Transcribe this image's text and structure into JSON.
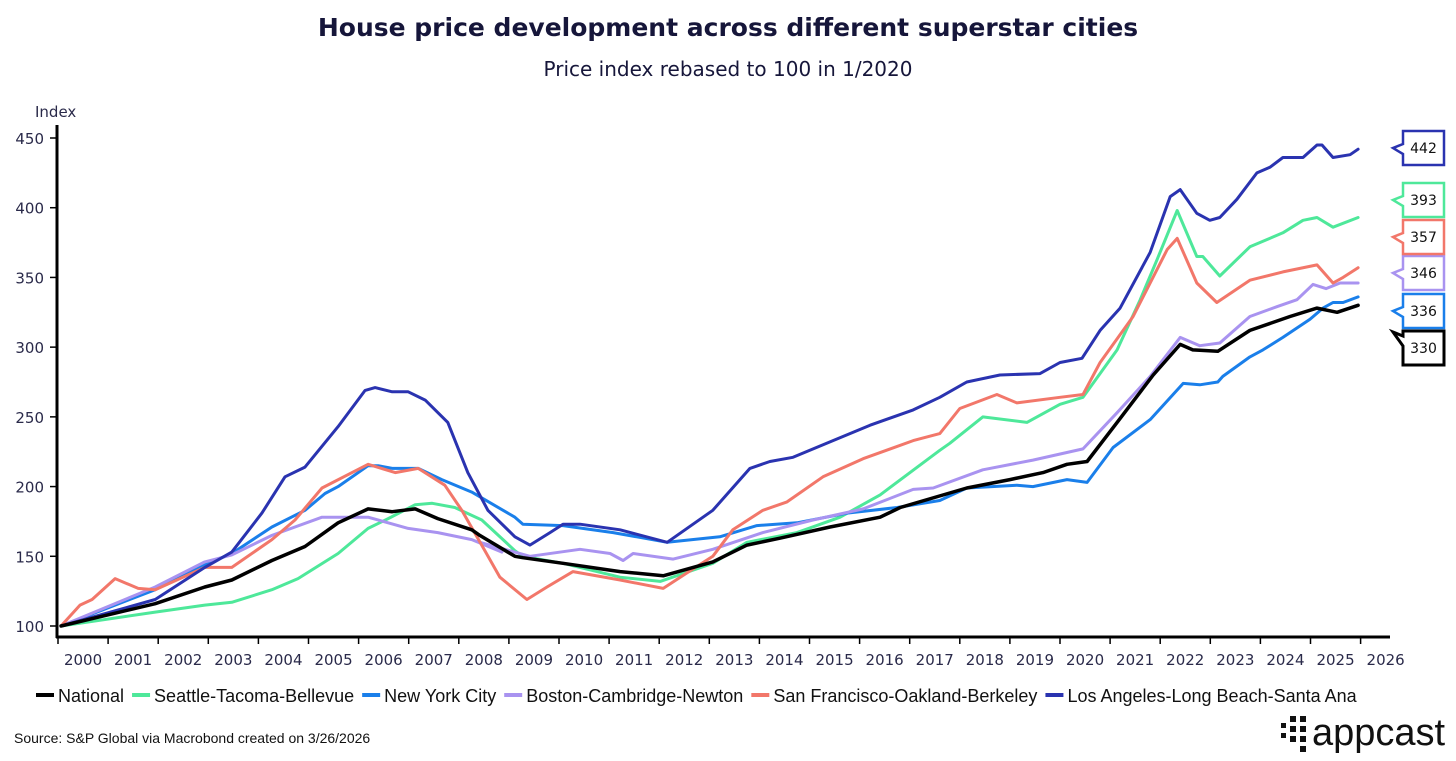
{
  "chart_data": {
    "type": "line",
    "title": "House price development across different superstar cities",
    "subtitle": "Price index rebased to 100 in 1/2020",
    "ylabel": "Index",
    "xlabel": "",
    "ylim": [
      100,
      450
    ],
    "xlim": [
      2000,
      2026
    ],
    "yticks": [
      100,
      150,
      200,
      250,
      300,
      350,
      400,
      450
    ],
    "xtick_labels": [
      "2000",
      "2001",
      "2002",
      "2003",
      "2004",
      "2005",
      "2006",
      "2007",
      "2008",
      "2009",
      "2010",
      "2011",
      "2012",
      "2013",
      "2014",
      "2015",
      "2016",
      "2017",
      "2018",
      "2019",
      "2020",
      "2021",
      "2022",
      "2023",
      "2024",
      "2025",
      "2026"
    ],
    "grid": false,
    "legend_placement": "bottom",
    "source": "Source: S&P Global via Macrobond created on 3/26/2026",
    "series": [
      {
        "name": "National",
        "color": "#000000",
        "end_label": "330",
        "points": [
          [
            2000.06,
            100
          ],
          [
            2001.94,
            116
          ],
          [
            2002.93,
            128
          ],
          [
            2003.47,
            133
          ],
          [
            2004.27,
            147
          ],
          [
            2004.93,
            157
          ],
          [
            2005.59,
            174
          ],
          [
            2006.19,
            184
          ],
          [
            2006.67,
            182
          ],
          [
            2007.13,
            184
          ],
          [
            2007.58,
            177
          ],
          [
            2008.26,
            169
          ],
          [
            2008.42,
            165
          ],
          [
            2009.12,
            150
          ],
          [
            2009.28,
            149
          ],
          [
            2010.08,
            145
          ],
          [
            2011.22,
            139
          ],
          [
            2012.08,
            136
          ],
          [
            2013.07,
            146
          ],
          [
            2013.75,
            158
          ],
          [
            2014.41,
            163
          ],
          [
            2015.41,
            171
          ],
          [
            2016.41,
            178
          ],
          [
            2016.81,
            185
          ],
          [
            2018.14,
            199
          ],
          [
            2019.0,
            205
          ],
          [
            2019.66,
            210
          ],
          [
            2020.14,
            216
          ],
          [
            2020.54,
            218
          ],
          [
            2021.14,
            246
          ],
          [
            2021.86,
            280
          ],
          [
            2022.4,
            302
          ],
          [
            2022.65,
            298
          ],
          [
            2023.15,
            297
          ],
          [
            2023.79,
            312
          ],
          [
            2024.59,
            322
          ],
          [
            2025.13,
            328
          ],
          [
            2025.53,
            325
          ],
          [
            2025.95,
            330
          ]
        ]
      },
      {
        "name": "Seattle-Tacoma-Bellevue",
        "color": "#4ee89a",
        "end_label": "393",
        "points": [
          [
            2000.06,
            100
          ],
          [
            2001.94,
            110
          ],
          [
            2002.93,
            115
          ],
          [
            2003.47,
            117
          ],
          [
            2004.27,
            126
          ],
          [
            2004.79,
            134
          ],
          [
            2005.59,
            152
          ],
          [
            2006.19,
            170
          ],
          [
            2006.59,
            177
          ],
          [
            2007.13,
            187
          ],
          [
            2007.47,
            188
          ],
          [
            2007.92,
            185
          ],
          [
            2008.46,
            176
          ],
          [
            2009.12,
            154
          ],
          [
            2009.28,
            150
          ],
          [
            2010.08,
            145
          ],
          [
            2011.22,
            135
          ],
          [
            2012.02,
            132
          ],
          [
            2013.07,
            145
          ],
          [
            2013.75,
            160
          ],
          [
            2014.75,
            167
          ],
          [
            2015.61,
            178
          ],
          [
            2016.41,
            194
          ],
          [
            2017.6,
            226
          ],
          [
            2017.8,
            231
          ],
          [
            2018.46,
            250
          ],
          [
            2019.34,
            246
          ],
          [
            2020.0,
            259
          ],
          [
            2020.46,
            264
          ],
          [
            2021.14,
            298
          ],
          [
            2021.6,
            334
          ],
          [
            2021.94,
            363
          ],
          [
            2022.34,
            398
          ],
          [
            2022.73,
            365
          ],
          [
            2022.85,
            365
          ],
          [
            2023.19,
            351
          ],
          [
            2023.79,
            372
          ],
          [
            2024.45,
            382
          ],
          [
            2024.85,
            391
          ],
          [
            2025.13,
            393
          ],
          [
            2025.45,
            386
          ],
          [
            2025.95,
            393
          ]
        ]
      },
      {
        "name": "New York City",
        "color": "#1a7fea",
        "end_label": "336",
        "points": [
          [
            2000.06,
            100
          ],
          [
            2001.94,
            126
          ],
          [
            2002.93,
            144
          ],
          [
            2003.47,
            152
          ],
          [
            2004.27,
            171
          ],
          [
            2004.93,
            183
          ],
          [
            2005.33,
            195
          ],
          [
            2005.59,
            200
          ],
          [
            2006.19,
            215
          ],
          [
            2006.39,
            215
          ],
          [
            2006.67,
            213
          ],
          [
            2007.19,
            213
          ],
          [
            2007.66,
            205
          ],
          [
            2008.26,
            196
          ],
          [
            2009.12,
            178
          ],
          [
            2009.28,
            173
          ],
          [
            2010.08,
            172
          ],
          [
            2011.08,
            167
          ],
          [
            2012.16,
            160
          ],
          [
            2013.21,
            164
          ],
          [
            2013.95,
            172
          ],
          [
            2014.75,
            174
          ],
          [
            2015.75,
            181
          ],
          [
            2016.75,
            185
          ],
          [
            2017.6,
            190
          ],
          [
            2018.14,
            199
          ],
          [
            2019.14,
            201
          ],
          [
            2019.46,
            200
          ],
          [
            2020.14,
            205
          ],
          [
            2020.54,
            203
          ],
          [
            2021.06,
            228
          ],
          [
            2021.8,
            248
          ],
          [
            2022.46,
            274
          ],
          [
            2022.79,
            273
          ],
          [
            2023.15,
            275
          ],
          [
            2023.25,
            279
          ],
          [
            2023.79,
            293
          ],
          [
            2024.05,
            298
          ],
          [
            2024.45,
            307
          ],
          [
            2024.99,
            320
          ],
          [
            2025.25,
            328
          ],
          [
            2025.45,
            332
          ],
          [
            2025.65,
            332
          ],
          [
            2025.95,
            336
          ]
        ]
      },
      {
        "name": "Boston-Cambridge-Newton",
        "color": "#a993f0",
        "end_label": "346",
        "points": [
          [
            2000.06,
            100
          ],
          [
            2001.94,
            128
          ],
          [
            2002.93,
            146
          ],
          [
            2003.47,
            151
          ],
          [
            2004.27,
            165
          ],
          [
            2005.27,
            178
          ],
          [
            2005.79,
            178
          ],
          [
            2006.19,
            178
          ],
          [
            2006.99,
            170
          ],
          [
            2007.58,
            167
          ],
          [
            2008.26,
            162
          ],
          [
            2008.86,
            153
          ],
          [
            2008.42,
            160
          ],
          [
            2009.42,
            150
          ],
          [
            2010.42,
            155
          ],
          [
            2011.02,
            152
          ],
          [
            2011.28,
            147
          ],
          [
            2011.48,
            152
          ],
          [
            2012.28,
            148
          ],
          [
            2013.07,
            155
          ],
          [
            2014.07,
            167
          ],
          [
            2015.07,
            176
          ],
          [
            2016.07,
            184
          ],
          [
            2017.07,
            198
          ],
          [
            2017.47,
            199
          ],
          [
            2018.46,
            212
          ],
          [
            2019.46,
            219
          ],
          [
            2020.46,
            227
          ],
          [
            2021.14,
            253
          ],
          [
            2021.8,
            279
          ],
          [
            2022.4,
            307
          ],
          [
            2022.79,
            301
          ],
          [
            2023.19,
            303
          ],
          [
            2023.79,
            322
          ],
          [
            2024.33,
            329
          ],
          [
            2024.73,
            334
          ],
          [
            2025.05,
            345
          ],
          [
            2025.31,
            342
          ],
          [
            2025.59,
            346
          ],
          [
            2025.95,
            346
          ]
        ]
      },
      {
        "name": "San Francisco-Oakland-Berkeley",
        "color": "#f2776a",
        "end_label": "357",
        "points": [
          [
            2000.06,
            100
          ],
          [
            2000.44,
            115
          ],
          [
            2000.68,
            119
          ],
          [
            2001.14,
            134
          ],
          [
            2001.6,
            127
          ],
          [
            2001.94,
            126
          ],
          [
            2002.93,
            142
          ],
          [
            2003.47,
            142
          ],
          [
            2004.27,
            162
          ],
          [
            2004.73,
            176
          ],
          [
            2005.27,
            199
          ],
          [
            2006.19,
            216
          ],
          [
            2006.73,
            210
          ],
          [
            2007.19,
            213
          ],
          [
            2007.72,
            201
          ],
          [
            2008.06,
            183
          ],
          [
            2008.52,
            154
          ],
          [
            2008.82,
            135
          ],
          [
            2009.36,
            119
          ],
          [
            2009.76,
            128
          ],
          [
            2010.28,
            139
          ],
          [
            2011.22,
            133
          ],
          [
            2012.08,
            127
          ],
          [
            2012.55,
            138
          ],
          [
            2013.07,
            150
          ],
          [
            2013.47,
            169
          ],
          [
            2014.07,
            183
          ],
          [
            2014.55,
            189
          ],
          [
            2015.27,
            207
          ],
          [
            2016.07,
            220
          ],
          [
            2017.07,
            233
          ],
          [
            2017.6,
            238
          ],
          [
            2018.0,
            256
          ],
          [
            2018.74,
            266
          ],
          [
            2019.14,
            260
          ],
          [
            2020.0,
            264
          ],
          [
            2020.46,
            266
          ],
          [
            2020.8,
            289
          ],
          [
            2021.46,
            322
          ],
          [
            2022.14,
            370
          ],
          [
            2022.34,
            378
          ],
          [
            2022.73,
            346
          ],
          [
            2023.13,
            332
          ],
          [
            2023.79,
            348
          ],
          [
            2024.45,
            354
          ],
          [
            2025.13,
            359
          ],
          [
            2025.45,
            346
          ],
          [
            2025.65,
            350
          ],
          [
            2025.95,
            357
          ]
        ]
      },
      {
        "name": "Los Angeles-Long Beach-Santa Ana",
        "color": "#2a33b0",
        "end_label": "442",
        "points": [
          [
            2000.06,
            100
          ],
          [
            2001.94,
            119
          ],
          [
            2002.93,
            142
          ],
          [
            2003.47,
            153
          ],
          [
            2004.07,
            181
          ],
          [
            2004.53,
            207
          ],
          [
            2004.93,
            214
          ],
          [
            2005.59,
            243
          ],
          [
            2006.13,
            269
          ],
          [
            2006.33,
            271
          ],
          [
            2006.67,
            268
          ],
          [
            2006.99,
            268
          ],
          [
            2007.33,
            262
          ],
          [
            2007.78,
            246
          ],
          [
            2008.18,
            210
          ],
          [
            2008.58,
            183
          ],
          [
            2009.12,
            164
          ],
          [
            2009.42,
            158
          ],
          [
            2009.82,
            167
          ],
          [
            2010.08,
            173
          ],
          [
            2010.42,
            173
          ],
          [
            2011.22,
            169
          ],
          [
            2012.16,
            160
          ],
          [
            2013.07,
            183
          ],
          [
            2013.81,
            213
          ],
          [
            2014.21,
            218
          ],
          [
            2014.67,
            221
          ],
          [
            2015.47,
            233
          ],
          [
            2016.21,
            244
          ],
          [
            2017.07,
            255
          ],
          [
            2017.6,
            264
          ],
          [
            2018.14,
            275
          ],
          [
            2018.8,
            280
          ],
          [
            2019.6,
            281
          ],
          [
            2020.0,
            289
          ],
          [
            2020.44,
            292
          ],
          [
            2020.8,
            312
          ],
          [
            2021.2,
            328
          ],
          [
            2021.8,
            368
          ],
          [
            2022.2,
            408
          ],
          [
            2022.4,
            413
          ],
          [
            2022.73,
            396
          ],
          [
            2022.99,
            391
          ],
          [
            2023.19,
            393
          ],
          [
            2023.53,
            406
          ],
          [
            2023.93,
            425
          ],
          [
            2024.19,
            429
          ],
          [
            2024.45,
            436
          ],
          [
            2024.85,
            436
          ],
          [
            2025.13,
            445
          ],
          [
            2025.23,
            445
          ],
          [
            2025.45,
            436
          ],
          [
            2025.79,
            438
          ],
          [
            2025.95,
            442
          ]
        ]
      }
    ]
  },
  "brand": {
    "name": "appcast"
  }
}
